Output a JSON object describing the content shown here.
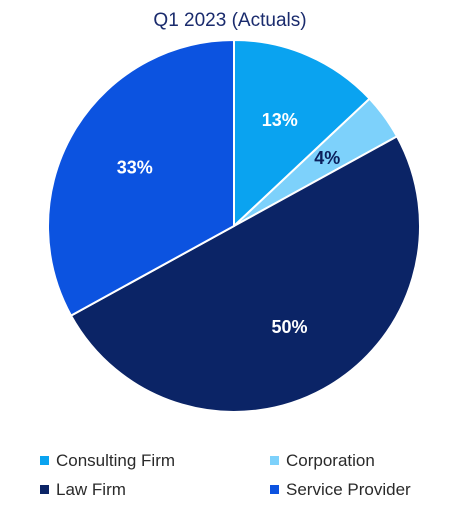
{
  "chart_data": {
    "type": "pie",
    "title": "Q1 2023 (Actuals)",
    "slices": [
      {
        "name": "Consulting Firm",
        "value": 13,
        "label": "13%",
        "color": "#0aa3f0",
        "label_color": "#ffffff"
      },
      {
        "name": "Corporation",
        "value": 4,
        "label": "4%",
        "color": "#7dd1fb",
        "label_color": "#0b1f5c"
      },
      {
        "name": "Law Firm",
        "value": 50,
        "label": "50%",
        "color": "#0b2466",
        "label_color": "#ffffff"
      },
      {
        "name": "Service Provider",
        "value": 33,
        "label": "33%",
        "color": "#0c53e0",
        "label_color": "#ffffff"
      }
    ],
    "legend_placement": "bottom"
  }
}
